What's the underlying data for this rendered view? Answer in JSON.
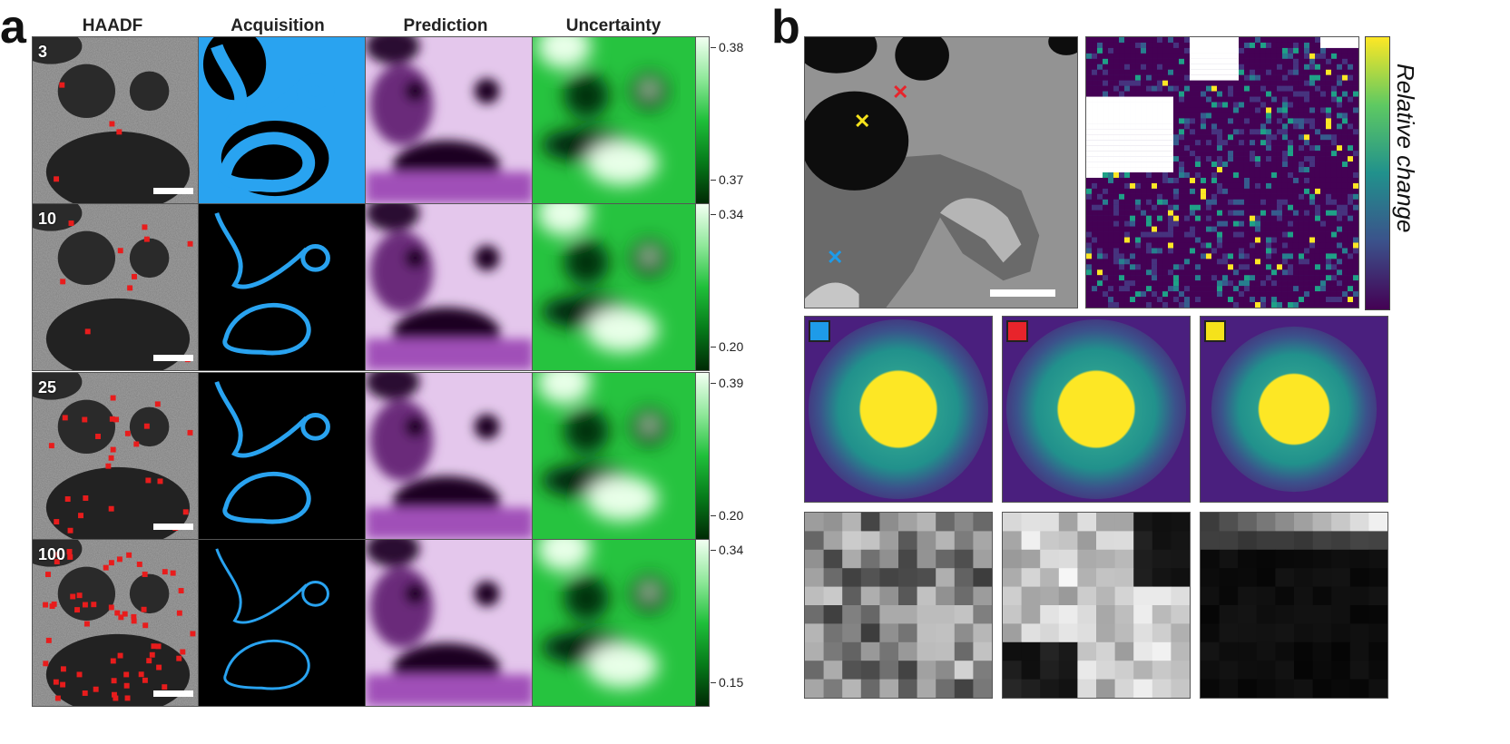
{
  "panel_a": {
    "letter": "a",
    "headers": [
      "HAADF",
      "Acquisition",
      "Prediction",
      "Uncertainty"
    ],
    "rows": [
      {
        "step": "3",
        "cbar_top": "0.38",
        "cbar_bottom": "0.37"
      },
      {
        "step": "10",
        "cbar_top": "0.34",
        "cbar_bottom": "0.20"
      },
      {
        "step": "25",
        "cbar_top": "0.39",
        "cbar_bottom": "0.20"
      },
      {
        "step": "100",
        "cbar_top": "0.34",
        "cbar_bottom": "0.15"
      }
    ]
  },
  "panel_b": {
    "letter": "b",
    "colorbar_label": "Relative change",
    "marker_colors": {
      "blue": "#1e9be9",
      "red": "#e8242b",
      "yellow": "#f5e21b"
    }
  },
  "colors": {
    "acquisition": "#29a3f0",
    "prediction": "#a050b8",
    "uncertainty": "#26c33f",
    "red_points": "#e81c1c"
  }
}
